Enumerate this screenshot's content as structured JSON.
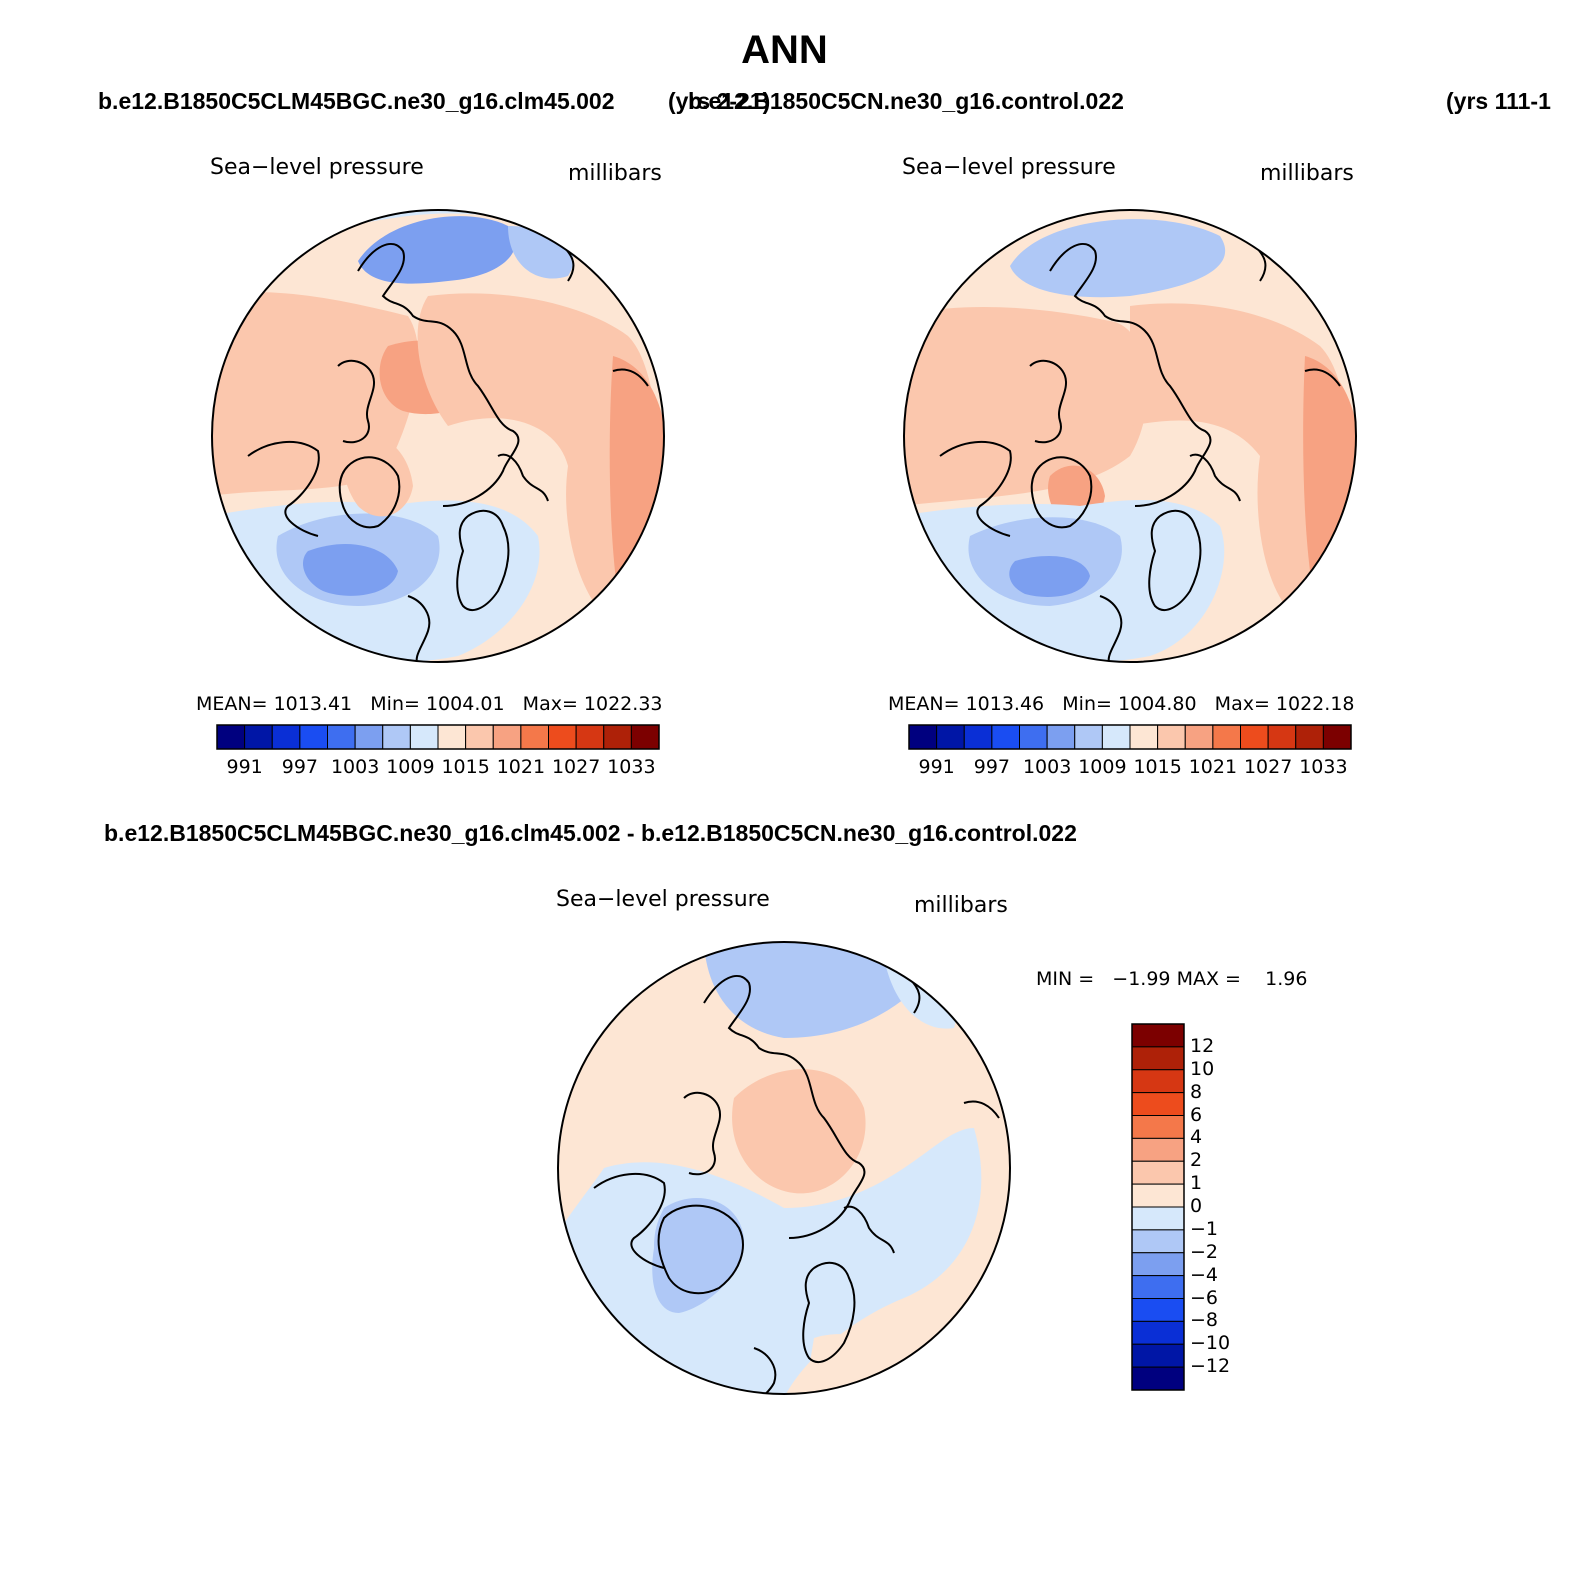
{
  "figure": {
    "title": "ANN",
    "panels": [
      {
        "case_name": "b.e12.B1850C5CLM45BGC.ne30_g16.clm45.002",
        "years": "(yrs 2-21)",
        "variable": "Sea−level pressure",
        "units": "millibars",
        "stats": {
          "mean_label": "MEAN=",
          "mean": "1013.41",
          "min_label": "Min=",
          "min": "1004.01",
          "max_label": "Max=",
          "max": "1022.33"
        }
      },
      {
        "case_name": "b.e12.B1850C5CN.ne30_g16.control.022",
        "years": "(yrs 111-1",
        "variable": "Sea−level pressure",
        "units": "millibars",
        "stats": {
          "mean_label": "MEAN=",
          "mean": "1013.46",
          "min_label": "Min=",
          "min": "1004.80",
          "max_label": "Max=",
          "max": "1022.18"
        }
      },
      {
        "case_name": "b.e12.B1850C5CLM45BGC.ne30_g16.clm45.002 - b.e12.B1850C5CN.ne30_g16.control.022",
        "variable": "Sea−level pressure",
        "units": "millibars",
        "stats": {
          "min_label": "MIN =",
          "min": "−1.99",
          "max_label": "MAX =",
          "max": "1.96"
        }
      }
    ],
    "abs_colorbar": {
      "colors": [
        "#00007f",
        "#0016a6",
        "#0a2fd6",
        "#1a4df2",
        "#3e6ef0",
        "#7c9ff0",
        "#afc8f6",
        "#d6e8fb",
        "#fde6d4",
        "#fbc7ad",
        "#f7a282",
        "#f4784a",
        "#ed4c1d",
        "#d63713",
        "#ae2108",
        "#7c0000"
      ],
      "tick_labels": [
        "991",
        "997",
        "1003",
        "1009",
        "1015",
        "1021",
        "1027",
        "1033"
      ]
    },
    "diff_colorbar": {
      "colors": [
        "#7c0000",
        "#ae2108",
        "#d63713",
        "#ed4c1d",
        "#f4784a",
        "#f7a282",
        "#fbc7ad",
        "#fde6d4",
        "#d6e8fb",
        "#afc8f6",
        "#7c9ff0",
        "#3e6ef0",
        "#1a4df2",
        "#0a2fd6",
        "#0016a6",
        "#00007f"
      ],
      "tick_labels": [
        "12",
        "10",
        "8",
        "6",
        "4",
        "2",
        "1",
        "0",
        "−1",
        "−2",
        "−4",
        "−6",
        "−8",
        "−10",
        "−12"
      ]
    }
  }
}
